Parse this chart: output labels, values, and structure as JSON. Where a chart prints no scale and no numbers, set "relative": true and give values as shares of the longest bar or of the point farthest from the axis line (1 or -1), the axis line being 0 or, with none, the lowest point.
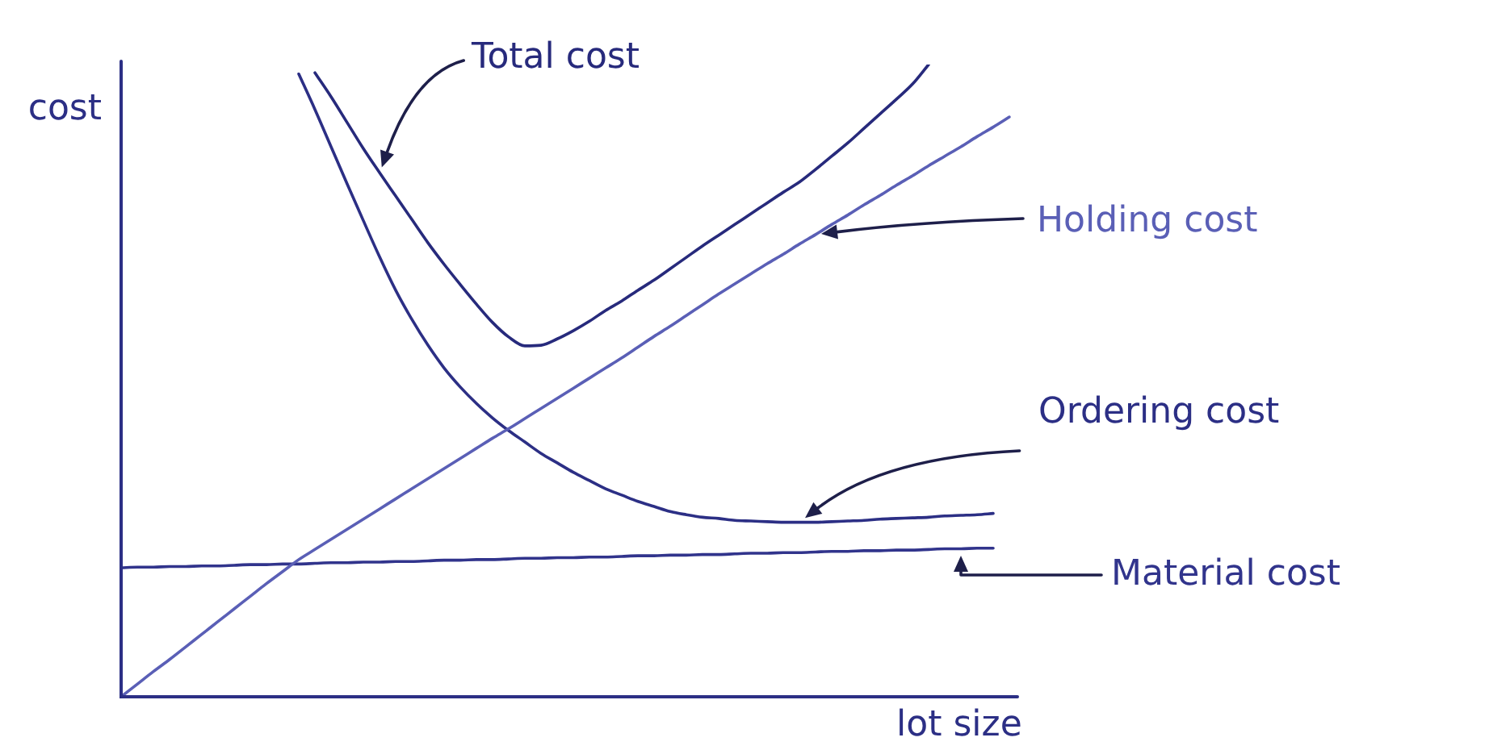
{
  "chart_data": {
    "type": "line",
    "ylabel": "cost",
    "xlabel": "lot size",
    "relative": true,
    "categories": [
      null,
      null,
      null,
      null,
      null,
      null,
      null,
      null,
      null,
      null,
      null,
      null,
      null,
      null,
      null,
      null,
      null,
      null,
      null,
      null,
      null,
      null,
      null,
      null,
      null,
      null,
      null,
      null,
      null,
      null,
      null,
      null,
      null,
      null,
      null,
      null,
      null,
      null,
      null,
      null,
      null,
      null,
      null,
      null,
      null,
      null,
      null,
      null,
      null,
      null,
      null,
      null,
      null,
      null,
      null,
      null
    ],
    "series": [
      {
        "name": "Total cost",
        "color": "#272a7c",
        "values": [
          null,
          null,
          null,
          null,
          null,
          null,
          null,
          null,
          null,
          null,
          null,
          null,
          0.987,
          0.949,
          0.908,
          0.867,
          0.829,
          0.792,
          0.755,
          0.718,
          0.684,
          0.652,
          0.621,
          0.592,
          0.569,
          0.555,
          0.556,
          0.566,
          0.579,
          0.594,
          0.611,
          0.626,
          0.643,
          0.659,
          0.677,
          0.695,
          0.713,
          0.73,
          0.747,
          0.764,
          0.781,
          0.798,
          0.814,
          0.834,
          0.855,
          0.876,
          0.899,
          0.922,
          0.945,
          0.969,
          1,
          null,
          null,
          null,
          null,
          null
        ]
      },
      {
        "name": "Holding cost",
        "color": "#5a5fb6",
        "values": [
          0,
          0.02,
          0.04,
          0.059,
          0.079,
          0.099,
          0.119,
          0.139,
          0.159,
          0.179,
          0.198,
          0.217,
          0.233,
          0.249,
          0.265,
          0.281,
          0.297,
          0.313,
          0.329,
          0.345,
          0.361,
          0.377,
          0.393,
          0.409,
          0.424,
          0.44,
          0.456,
          0.472,
          0.488,
          0.504,
          0.52,
          0.536,
          0.553,
          0.57,
          0.586,
          0.603,
          0.62,
          0.637,
          0.653,
          0.669,
          0.685,
          0.7,
          0.716,
          0.731,
          0.747,
          0.762,
          0.778,
          0.793,
          0.809,
          0.824,
          0.84,
          0.855,
          0.87,
          0.886,
          0.901,
          0.917
        ]
      },
      {
        "name": "Ordering cost",
        "color": "#2c2f85",
        "values": [
          null,
          null,
          null,
          null,
          null,
          null,
          null,
          null,
          null,
          null,
          null,
          0.985,
          0.929,
          0.87,
          0.811,
          0.753,
          0.696,
          0.643,
          0.597,
          0.556,
          0.52,
          0.49,
          0.464,
          0.441,
          0.421,
          0.403,
          0.385,
          0.37,
          0.355,
          0.342,
          0.329,
          0.319,
          0.309,
          0.301,
          0.293,
          0.288,
          0.284,
          0.282,
          0.279,
          0.278,
          0.277,
          0.276,
          0.276,
          0.276,
          0.277,
          0.278,
          0.279,
          0.281,
          0.282,
          0.283,
          0.284,
          0.286,
          0.287,
          0.288,
          0.29,
          null
        ]
      },
      {
        "name": "Material cost",
        "color": "#31348c",
        "values": [
          0.204,
          0.205,
          0.205,
          0.206,
          0.206,
          0.207,
          0.207,
          0.208,
          0.209,
          0.209,
          0.21,
          0.21,
          0.211,
          0.212,
          0.212,
          0.213,
          0.213,
          0.214,
          0.214,
          0.215,
          0.216,
          0.216,
          0.217,
          0.217,
          0.218,
          0.219,
          0.219,
          0.22,
          0.22,
          0.221,
          0.221,
          0.222,
          0.223,
          0.223,
          0.224,
          0.224,
          0.225,
          0.225,
          0.226,
          0.227,
          0.227,
          0.228,
          0.228,
          0.229,
          0.23,
          0.23,
          0.231,
          0.231,
          0.232,
          0.232,
          0.233,
          0.234,
          0.234,
          0.235,
          0.235,
          null
        ]
      }
    ]
  }
}
